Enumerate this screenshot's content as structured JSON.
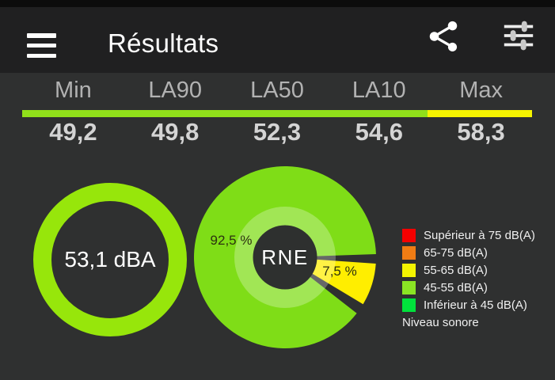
{
  "header": {
    "title": "Résultats",
    "menu_icon": "hamburger-menu",
    "share_icon": "share",
    "settings_icon": "sliders"
  },
  "stats": {
    "columns": [
      {
        "label": "Min",
        "value": "49,2"
      },
      {
        "label": "LA90",
        "value": "49,8"
      },
      {
        "label": "LA50",
        "value": "52,3"
      },
      {
        "label": "LA10",
        "value": "54,6"
      },
      {
        "label": "Max",
        "value": "58,3"
      }
    ],
    "bar": {
      "green_color": "#91e01a",
      "yellow_color": "#f6f400",
      "green_width": "79.5%"
    }
  },
  "gauge": {
    "value": "53,1 dBA",
    "ring_color": "#97e60b"
  },
  "pie": {
    "center_label": "RNE",
    "label_color": "#2c3110",
    "slices": [
      {
        "range": "45-55 dB(A)",
        "percent_label": "92,5 %",
        "value": 92.5,
        "color": "#7fdd17"
      },
      {
        "range": "55-65 dB(A)",
        "percent_label": "7,5 %",
        "value": 7.5,
        "color": "#ffee00"
      }
    ]
  },
  "legend": {
    "items": [
      {
        "label": "Supérieur à 75 dB(A)",
        "color": "#f40000"
      },
      {
        "label": "65-75 dB(A)",
        "color": "#f07c14"
      },
      {
        "label": "55-65 dB(A)",
        "color": "#f4f400"
      },
      {
        "label": "45-55 dB(A)",
        "color": "#8ae424"
      },
      {
        "label": "Inférieur à 45 dB(A)",
        "color": "#00e23c"
      }
    ],
    "footer": "Niveau sonore"
  },
  "chart_data": [
    {
      "type": "table",
      "categories": [
        "Min",
        "LA90",
        "LA50",
        "LA10",
        "Max"
      ],
      "values": [
        49.2,
        49.8,
        52.3,
        54.6,
        58.3
      ]
    },
    {
      "type": "pie",
      "title": "RNE",
      "labels": [
        "45-55 dB(A)",
        "55-65 dB(A)"
      ],
      "values": [
        92.5,
        7.5
      ],
      "legend_position": "right"
    },
    {
      "type": "gauge",
      "value": 53.1,
      "tick_labels": [
        "53,1 dBA"
      ]
    }
  ]
}
